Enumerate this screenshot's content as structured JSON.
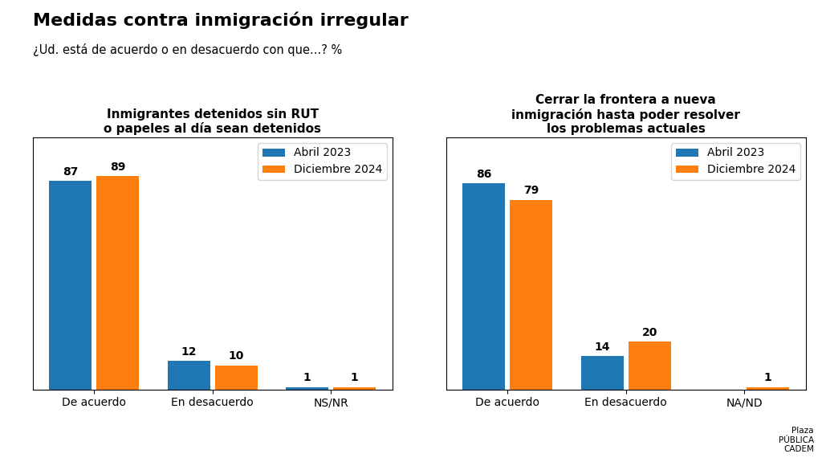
{
  "title": "Medidas contra inmigración irregular",
  "subtitle": "¿Ud. está de acuerdo o en desacuerdo con que...? %",
  "annotation": "Plaza\nPÚBLICA\nCADEM",
  "chart_data": [
    {
      "type": "bar",
      "title": "Inmigrantes detenidos sin RUT\no papeles al día sean detenidos",
      "categories": [
        "De acuerdo",
        "En desacuerdo",
        "NS/NR"
      ],
      "series": [
        {
          "name": "Abril 2023",
          "values": [
            87,
            12,
            1
          ],
          "value_labels": [
            "87",
            "12",
            "1"
          ]
        },
        {
          "name": "Diciembre 2024",
          "values": [
            89,
            10,
            1
          ],
          "value_labels": [
            "89",
            "10",
            "1"
          ]
        }
      ],
      "ylim": [
        0,
        105
      ],
      "tick_labels": "x",
      "data_labels": true,
      "legend": "upper right",
      "grid": false
    },
    {
      "type": "bar",
      "title": "Cerrar la frontera a nueva\ninmigración hasta poder resolver\nlos problemas actuales",
      "categories": [
        "De acuerdo",
        "En desacuerdo",
        "NA/ND"
      ],
      "series": [
        {
          "name": "Abril 2023",
          "values": [
            86,
            14,
            0
          ],
          "value_labels": [
            "86",
            "14",
            null
          ]
        },
        {
          "name": "Diciembre 2024",
          "values": [
            79,
            20,
            1
          ],
          "value_labels": [
            "79",
            "20",
            "1"
          ]
        }
      ],
      "ylim": [
        0,
        105
      ],
      "tick_labels": "x",
      "data_labels": true,
      "legend": "upper right",
      "grid": false
    }
  ]
}
